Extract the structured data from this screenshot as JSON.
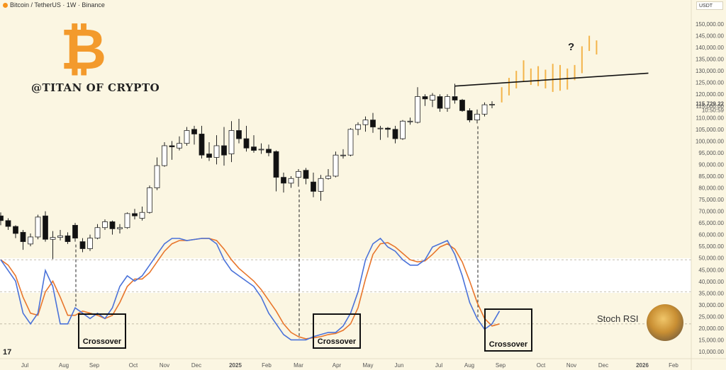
{
  "header": {
    "title": "Bitcoin / TetherUS · 1W · Binance"
  },
  "currency_button": "USDT",
  "brand": "@TITAN OF CRYPTO",
  "logo_symbol": "₿",
  "question_mark": "?",
  "indicator_label": "Stoch RSI",
  "tv_logo": "17",
  "crossover_labels": [
    "Crossover",
    "Crossover",
    "Crossover"
  ],
  "colors": {
    "background": "#fbf6e2",
    "rsi_k": "#4a72d9",
    "rsi_d": "#e8762c",
    "projection": "#f3b44a",
    "logo": "#f39a2c"
  },
  "chart_data": {
    "type": "candlestick",
    "symbol": "BTCUSDT",
    "interval": "1W",
    "last_price": "115,729.22",
    "countdown": "10:50:59",
    "y_ticks": [
      "150,000.00",
      "145,000.00",
      "140,000.00",
      "135,000.00",
      "130,000.00",
      "125,000.00",
      "120,000.00",
      "115,000.00",
      "110,000.00",
      "105,000.00",
      "100,000.00",
      "95,000.00",
      "90,000.00",
      "85,000.00",
      "80,000.00",
      "75,000.00",
      "70,000.00",
      "65,000.00",
      "60,000.00",
      "55,000.00",
      "50,000.00",
      "45,000.00",
      "40,000.00",
      "35,000.00",
      "30,000.00",
      "25,000.00",
      "20,000.00",
      "15,000.00",
      "10,000.00"
    ],
    "x_ticks": [
      "Jul",
      "Aug",
      "Sep",
      "Oct",
      "Nov",
      "Dec",
      "2025",
      "Feb",
      "Mar",
      "Apr",
      "May",
      "Jun",
      "Jul",
      "Aug",
      "Sep",
      "Oct",
      "Nov",
      "Dec",
      "2026",
      "Feb"
    ],
    "candles": [
      {
        "o": 68000,
        "c": 66000,
        "h": 69500,
        "l": 64000
      },
      {
        "o": 66000,
        "c": 63500,
        "h": 67000,
        "l": 62000
      },
      {
        "o": 63500,
        "c": 60500,
        "h": 64000,
        "l": 58500
      },
      {
        "o": 61000,
        "c": 57000,
        "h": 62000,
        "l": 53500
      },
      {
        "o": 56000,
        "c": 59000,
        "h": 60500,
        "l": 55000
      },
      {
        "o": 59000,
        "c": 67500,
        "h": 68500,
        "l": 58000
      },
      {
        "o": 68000,
        "c": 58000,
        "h": 70000,
        "l": 57000
      },
      {
        "o": 58000,
        "c": 58800,
        "h": 61500,
        "l": 49500
      },
      {
        "o": 58800,
        "c": 59500,
        "h": 62000,
        "l": 57500
      },
      {
        "o": 59500,
        "c": 57000,
        "h": 61000,
        "l": 56000
      },
      {
        "o": 64000,
        "c": 58500,
        "h": 65000,
        "l": 57000
      },
      {
        "o": 57000,
        "c": 54000,
        "h": 58500,
        "l": 52500
      },
      {
        "o": 54000,
        "c": 58500,
        "h": 60000,
        "l": 53000
      },
      {
        "o": 58500,
        "c": 63000,
        "h": 64500,
        "l": 58000
      },
      {
        "o": 63000,
        "c": 65500,
        "h": 66500,
        "l": 62000
      },
      {
        "o": 65500,
        "c": 62500,
        "h": 66000,
        "l": 60000
      },
      {
        "o": 62500,
        "c": 63000,
        "h": 64500,
        "l": 60500
      },
      {
        "o": 63000,
        "c": 69000,
        "h": 69500,
        "l": 62500
      },
      {
        "o": 69000,
        "c": 68000,
        "h": 71000,
        "l": 66500
      },
      {
        "o": 67000,
        "c": 69500,
        "h": 72000,
        "l": 66000
      },
      {
        "o": 69500,
        "c": 80000,
        "h": 81000,
        "l": 69000
      },
      {
        "o": 80000,
        "c": 89500,
        "h": 93000,
        "l": 79000
      },
      {
        "o": 89500,
        "c": 98000,
        "h": 99500,
        "l": 89000
      },
      {
        "o": 98000,
        "c": 97500,
        "h": 100000,
        "l": 92000
      },
      {
        "o": 97000,
        "c": 99000,
        "h": 102000,
        "l": 96000
      },
      {
        "o": 99000,
        "c": 104500,
        "h": 106000,
        "l": 98000
      },
      {
        "o": 105000,
        "c": 103000,
        "h": 106500,
        "l": 98500
      },
      {
        "o": 103000,
        "c": 94000,
        "h": 106500,
        "l": 92500
      },
      {
        "o": 94500,
        "c": 93000,
        "h": 99500,
        "l": 91500
      },
      {
        "o": 93000,
        "c": 98000,
        "h": 102500,
        "l": 90000
      },
      {
        "o": 98000,
        "c": 94000,
        "h": 106000,
        "l": 89500
      },
      {
        "o": 94500,
        "c": 104500,
        "h": 108500,
        "l": 91000
      },
      {
        "o": 104500,
        "c": 101000,
        "h": 109500,
        "l": 99000
      },
      {
        "o": 101000,
        "c": 97000,
        "h": 106500,
        "l": 95500
      },
      {
        "o": 97500,
        "c": 96000,
        "h": 102500,
        "l": 95000
      },
      {
        "o": 96500,
        "c": 96500,
        "h": 99000,
        "l": 94500
      },
      {
        "o": 96500,
        "c": 95000,
        "h": 98500,
        "l": 93500
      },
      {
        "o": 95500,
        "c": 84500,
        "h": 96000,
        "l": 78500
      },
      {
        "o": 84500,
        "c": 82000,
        "h": 86500,
        "l": 78000
      },
      {
        "o": 82000,
        "c": 84000,
        "h": 85000,
        "l": 80000
      },
      {
        "o": 84500,
        "c": 87000,
        "h": 88000,
        "l": 80500
      },
      {
        "o": 87500,
        "c": 84000,
        "h": 88500,
        "l": 81500
      },
      {
        "o": 82500,
        "c": 78500,
        "h": 86500,
        "l": 76000
      },
      {
        "o": 78500,
        "c": 84000,
        "h": 85500,
        "l": 74500
      },
      {
        "o": 84000,
        "c": 85000,
        "h": 88000,
        "l": 83500
      },
      {
        "o": 85000,
        "c": 94000,
        "h": 95500,
        "l": 84500
      },
      {
        "o": 94000,
        "c": 94000,
        "h": 96500,
        "l": 92500
      },
      {
        "o": 94000,
        "c": 105000,
        "h": 105500,
        "l": 93500
      },
      {
        "o": 105000,
        "c": 107000,
        "h": 108000,
        "l": 102500
      },
      {
        "o": 107000,
        "c": 109000,
        "h": 110500,
        "l": 104000
      },
      {
        "o": 109000,
        "c": 106000,
        "h": 112000,
        "l": 103500
      },
      {
        "o": 105500,
        "c": 105500,
        "h": 106500,
        "l": 100500
      },
      {
        "o": 105500,
        "c": 105000,
        "h": 106000,
        "l": 101500
      },
      {
        "o": 105000,
        "c": 101000,
        "h": 106500,
        "l": 99000
      },
      {
        "o": 101000,
        "c": 108500,
        "h": 109000,
        "l": 100500
      },
      {
        "o": 108500,
        "c": 108500,
        "h": 110000,
        "l": 107000
      },
      {
        "o": 108000,
        "c": 119000,
        "h": 123000,
        "l": 107500
      },
      {
        "o": 119000,
        "c": 118000,
        "h": 120000,
        "l": 115000
      },
      {
        "o": 117500,
        "c": 119500,
        "h": 120500,
        "l": 114500
      },
      {
        "o": 119000,
        "c": 114000,
        "h": 120000,
        "l": 112500
      },
      {
        "o": 114000,
        "c": 119000,
        "h": 120000,
        "l": 112500
      },
      {
        "o": 119000,
        "c": 117500,
        "h": 124500,
        "l": 116000
      },
      {
        "o": 117500,
        "c": 113000,
        "h": 118000,
        "l": 112500
      },
      {
        "o": 113000,
        "c": 109000,
        "h": 114000,
        "l": 108000
      },
      {
        "o": 109000,
        "c": 111500,
        "h": 113500,
        "l": 107500
      },
      {
        "o": 111500,
        "c": 115500,
        "h": 116500,
        "l": 110500
      },
      {
        "o": 115500,
        "c": 115700,
        "h": 117000,
        "l": 114000
      }
    ],
    "projection_candles": [
      {
        "h": 123000,
        "l": 116500
      },
      {
        "h": 127000,
        "l": 119500
      },
      {
        "h": 130000,
        "l": 122500
      },
      {
        "h": 134500,
        "l": 125500
      },
      {
        "h": 131000,
        "l": 124000
      },
      {
        "h": 132000,
        "l": 123500
      },
      {
        "h": 130500,
        "l": 122500
      },
      {
        "h": 133000,
        "l": 121000
      },
      {
        "h": 132500,
        "l": 121500
      },
      {
        "h": 131000,
        "l": 122000
      },
      {
        "h": 132500,
        "l": 126000
      },
      {
        "h": 140500,
        "l": 129000
      },
      {
        "h": 145000,
        "l": 138500
      },
      {
        "h": 143000,
        "l": 137000
      }
    ],
    "trendline": [
      {
        "index": 61,
        "price": 123500
      },
      {
        "index": 87,
        "price": 129000
      }
    ],
    "stoch_rsi": {
      "k": [
        80,
        70,
        60,
        30,
        20,
        30,
        70,
        55,
        20,
        20,
        35,
        30,
        25,
        30,
        25,
        35,
        55,
        65,
        60,
        65,
        75,
        85,
        95,
        100,
        100,
        98,
        99,
        100,
        100,
        95,
        80,
        70,
        65,
        60,
        55,
        45,
        30,
        20,
        10,
        5,
        5,
        5,
        8,
        10,
        12,
        12,
        18,
        30,
        50,
        80,
        95,
        100,
        92,
        88,
        80,
        75,
        75,
        80,
        92,
        95,
        98,
        85,
        65,
        40,
        25,
        15,
        20,
        32
      ],
      "d": [
        80,
        75,
        65,
        45,
        30,
        28,
        50,
        60,
        45,
        28,
        28,
        32,
        30,
        28,
        25,
        28,
        40,
        55,
        62,
        62,
        68,
        78,
        88,
        95,
        98,
        98,
        99,
        100,
        100,
        98,
        90,
        80,
        72,
        66,
        60,
        52,
        42,
        32,
        20,
        12,
        8,
        6,
        7,
        8,
        10,
        11,
        14,
        20,
        35,
        62,
        85,
        95,
        96,
        92,
        86,
        80,
        78,
        79,
        85,
        92,
        95,
        90,
        78,
        60,
        40,
        25,
        18,
        20
      ],
      "levels": [
        20,
        50,
        80
      ]
    },
    "crossover_indices": [
      10,
      40,
      64
    ]
  }
}
